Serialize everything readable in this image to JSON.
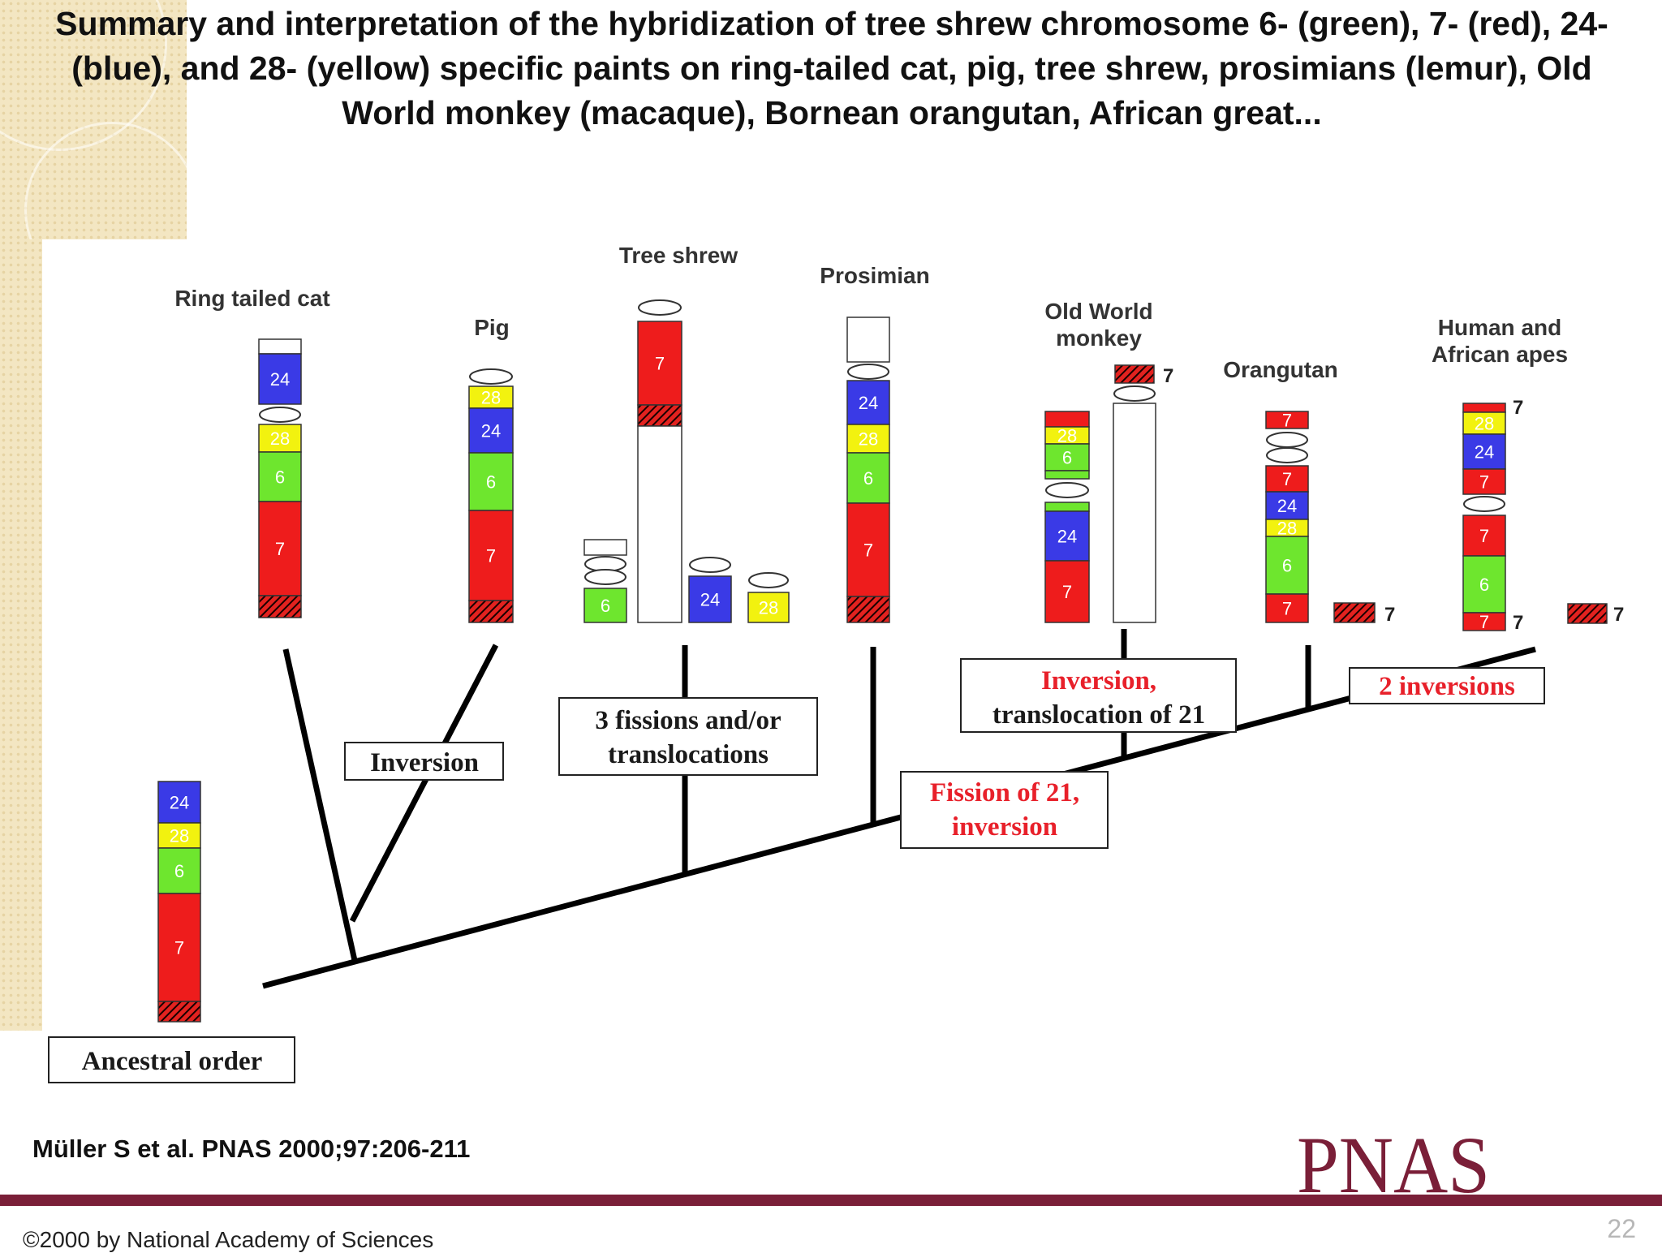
{
  "title": "Summary and interpretation of the hybridization of tree shrew chromosome 6- (green), 7- (red), 24- (blue), and 28- (yellow) specific paints on ring-tailed cat, pig, tree shrew, prosimians (lemur), Old World monkey (macaque), Bornean orangutan, African great...",
  "citation": "Müller S et al. PNAS 2000;97:206-211",
  "copyright": "©2000 by National Academy of Sciences",
  "page_number": "22",
  "logo_text": "PNAS",
  "colors": {
    "green": "#6ee62e",
    "red": "#ee1c1c",
    "blue": "#3a3ae6",
    "yellow": "#f2f20f",
    "footer": "#7a1f38",
    "event_red": "#e8202a"
  },
  "diagram": {
    "taxa": {
      "ring_tailed_cat": "Ring tailed cat",
      "pig": "Pig",
      "tree_shrew": "Tree shrew",
      "prosimian": "Prosimian",
      "old_world_monkey_1": "Old World",
      "old_world_monkey_2": "monkey",
      "orangutan": "Orangutan",
      "human_1": "Human and",
      "human_2": "African apes"
    },
    "events": {
      "inversion": "Inversion",
      "fissions_1": "3 fissions and/or",
      "fissions_2": "translocations",
      "fission21_1": "Fission of 21,",
      "fission21_2": "inversion",
      "inv_trans_1": "Inversion,",
      "inv_trans_2": "translocation of 21",
      "two_inversions": "2 inversions",
      "ancestral": "Ancestral order"
    },
    "segment_labels": {
      "c6": "6",
      "c7": "7",
      "c24": "24",
      "c28": "28"
    }
  }
}
